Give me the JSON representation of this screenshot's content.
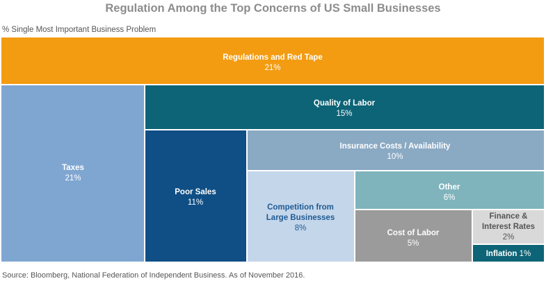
{
  "header": {
    "title": "Regulation Among the Top Concerns of US Small Businesses",
    "subtitle": "% Single Most Important Business Problem"
  },
  "footer": {
    "source": "Source: Bloomberg, National Federation of Independent Business. As of November 2016."
  },
  "chart_data": {
    "type": "treemap",
    "title": "Regulation Among the Top Concerns of US Small Businesses",
    "subtitle": "% Single Most Important Business Problem",
    "unit": "%",
    "items": [
      {
        "label": "Regulations and Red Tape",
        "value": 21,
        "value_label": "21%",
        "color": "#f39c12",
        "text_color": "#ffffff"
      },
      {
        "label": "Taxes",
        "value": 21,
        "value_label": "21%",
        "color": "#7fa6d1",
        "text_color": "#ffffff"
      },
      {
        "label": "Quality of Labor",
        "value": 15,
        "value_label": "15%",
        "color": "#0d6476",
        "text_color": "#ffffff"
      },
      {
        "label": "Poor Sales",
        "value": 11,
        "value_label": "11%",
        "color": "#0f4f85",
        "text_color": "#ffffff"
      },
      {
        "label": "Insurance Costs / Availability",
        "value": 10,
        "value_label": "10%",
        "color": "#8aa9c3",
        "text_color": "#ffffff"
      },
      {
        "label": "Competition from\nLarge Businesses",
        "value": 8,
        "value_label": "8%",
        "color": "#c4d6ea",
        "text_color": "#1f5a93"
      },
      {
        "label": "Other",
        "value": 6,
        "value_label": "6%",
        "color": "#80b4bd",
        "text_color": "#ffffff"
      },
      {
        "label": "Cost of Labor",
        "value": 5,
        "value_label": "5%",
        "color": "#9b9b9b",
        "text_color": "#ffffff"
      },
      {
        "label": "Finance &\nInterest Rates",
        "value": 2,
        "value_label": "2%",
        "color": "#d9d9d9",
        "text_color": "#555555"
      },
      {
        "label": "Inflation",
        "value": 1,
        "value_label": "1%",
        "color": "#0d6476",
        "text_color": "#ffffff"
      }
    ]
  }
}
